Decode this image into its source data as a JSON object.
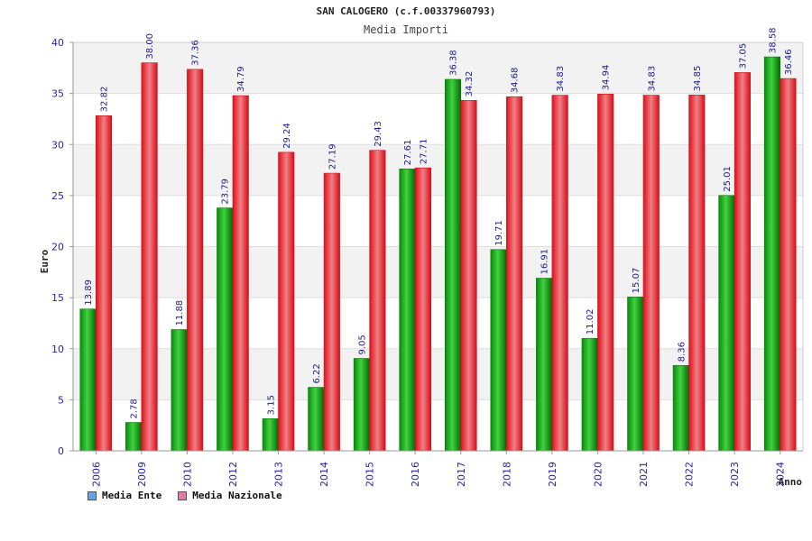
{
  "chart_data": {
    "type": "bar",
    "title": "SAN CALOGERO (c.f.00337960793)",
    "subtitle": "Media Importi",
    "xlabel": "Anno",
    "ylabel": "Euro",
    "ylim": [
      0,
      40
    ],
    "yticks": [
      0,
      5,
      10,
      15,
      20,
      25,
      30,
      35,
      40
    ],
    "grid": true,
    "legend_position": "bottom-left",
    "categories": [
      "2006",
      "2009",
      "2010",
      "2012",
      "2013",
      "2014",
      "2015",
      "2016",
      "2017",
      "2018",
      "2019",
      "2020",
      "2021",
      "2022",
      "2023",
      "2024"
    ],
    "series": [
      {
        "name": "Media Ente",
        "color": "#1fa31f",
        "legend_color": "#6aa2e8",
        "values": [
          13.89,
          2.78,
          11.88,
          23.79,
          3.15,
          6.22,
          9.05,
          27.61,
          36.38,
          19.71,
          16.91,
          11.02,
          15.07,
          8.36,
          25.01,
          38.58
        ]
      },
      {
        "name": "Media Nazionale",
        "color": "#e8313c",
        "legend_color": "#e27ca3",
        "values": [
          32.82,
          38.0,
          37.36,
          34.79,
          29.24,
          27.19,
          29.43,
          27.71,
          34.32,
          34.68,
          34.83,
          34.94,
          34.83,
          34.85,
          37.05,
          36.46
        ]
      }
    ],
    "data_labels": [
      [
        "13.89",
        "2.78",
        "11.88",
        "23.79",
        "3.15",
        "6.22",
        "9.05",
        "27.61",
        "36.38",
        "19.71",
        "16.91",
        "11.02",
        "15.07",
        "8.36",
        "25.01",
        "38.58"
      ],
      [
        "32.82",
        "38.00",
        "37.36",
        "34.79",
        "29.24",
        "27.19",
        "29.43",
        "27.71",
        "34.32",
        "34.68",
        "34.83",
        "34.94",
        "34.83",
        "34.85",
        "37.05",
        "36.46"
      ]
    ]
  }
}
